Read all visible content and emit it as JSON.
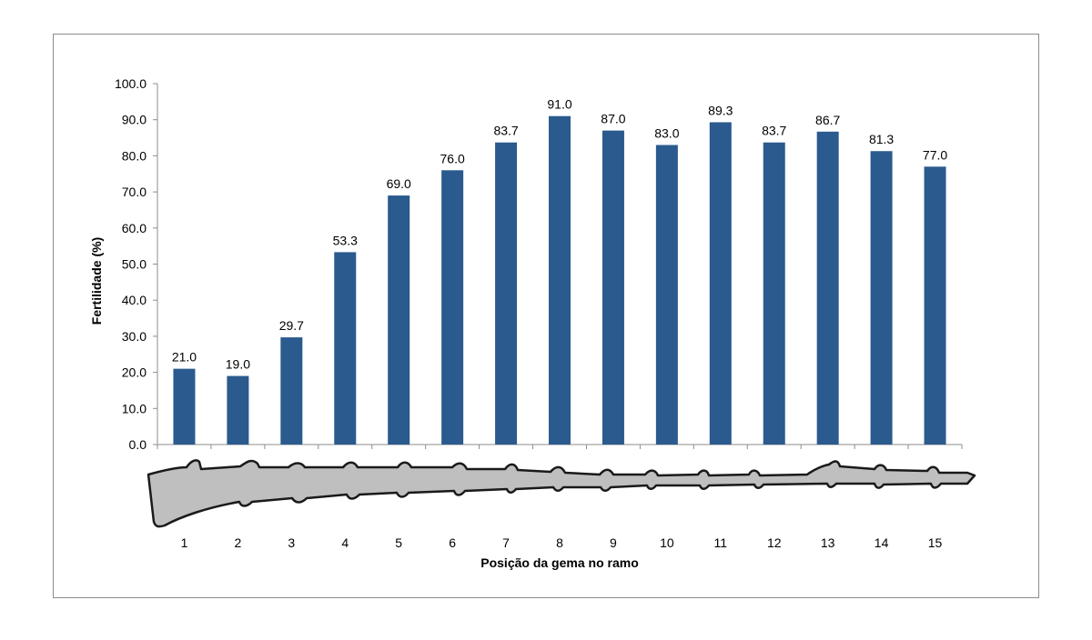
{
  "chart_data": {
    "type": "bar",
    "title": "",
    "xlabel": "Posição da gema no ramo",
    "ylabel": "Fertilidade (%)",
    "categories": [
      "1",
      "2",
      "3",
      "4",
      "5",
      "6",
      "7",
      "8",
      "9",
      "10",
      "11",
      "12",
      "13",
      "14",
      "15"
    ],
    "values": [
      21.0,
      19.0,
      29.7,
      53.3,
      69.0,
      76.0,
      83.7,
      91.0,
      87.0,
      83.0,
      89.3,
      83.7,
      86.7,
      81.3,
      77.0
    ],
    "data_labels": [
      "21.0",
      "19.0",
      "29.7",
      "53.3",
      "69.0",
      "76.0",
      "83.7",
      "91.0",
      "87.0",
      "83.0",
      "89.3",
      "83.7",
      "86.7",
      "81.3",
      "77.0"
    ],
    "y_ticks": [
      "0.0",
      "10.0",
      "20.0",
      "30.0",
      "40.0",
      "50.0",
      "60.0",
      "70.0",
      "80.0",
      "90.0",
      "100.0"
    ],
    "ylim": [
      0,
      100
    ],
    "grid": false,
    "legend": "none",
    "bar_color": "#2a5a8e",
    "illustration": "vine-shoot-with-buds"
  }
}
